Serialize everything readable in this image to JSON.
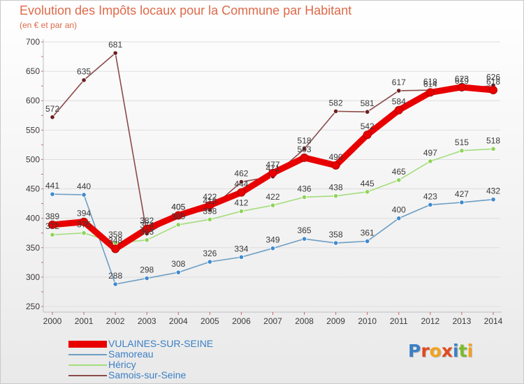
{
  "title": "Evolution des Impôts locaux pour la Commune par Habitant",
  "subtitle": "(en € et par an)",
  "logo": {
    "text": "Proxiti",
    "letters": [
      "P",
      "r",
      "o",
      "x",
      "i",
      "t",
      "i"
    ],
    "letter_colors": [
      "#3b7fc4",
      "#e2491f",
      "#f4a11d",
      "#e2491f",
      "#3b7fc4",
      "#7bbb2c",
      "#f4a11d"
    ]
  },
  "chart_data": {
    "type": "line",
    "title": "Evolution des Impôts locaux pour la Commune par Habitant",
    "subtitle": "(en € et par an)",
    "xlabel": "",
    "ylabel": "",
    "ylim": [
      250,
      700
    ],
    "yticks": [
      250,
      300,
      350,
      400,
      450,
      500,
      550,
      600,
      650,
      700
    ],
    "grid": true,
    "legend_position": "bottom-left",
    "categories": [
      "2000",
      "2001",
      "2002",
      "2003",
      "2004",
      "2005",
      "2006",
      "2007",
      "2008",
      "2009",
      "2010",
      "2011",
      "2012",
      "2013",
      "2014"
    ],
    "series": [
      {
        "name": "VULAINES-SUR-SEINE",
        "color": "#e80000",
        "marker_color": "#e80000",
        "values": [
          389,
          394,
          348,
          382,
          405,
          422,
          444,
          477,
          503,
          490,
          542,
          584,
          614,
          623,
          618
        ],
        "labels": [
          "389",
          "394",
          "348",
          "382",
          "405",
          "422",
          "444",
          "477",
          "503",
          "490",
          "542",
          "584",
          "614",
          "623",
          "618"
        ]
      },
      {
        "name": "Samoreau",
        "color": "#6d9ec3",
        "marker_color": "#3f8ad0",
        "values": [
          441,
          440,
          288,
          298,
          308,
          326,
          334,
          349,
          365,
          358,
          361,
          400,
          423,
          427,
          432
        ],
        "labels": [
          "441",
          "440",
          "288",
          "298",
          "308",
          "326",
          "334",
          "349",
          "365",
          "358",
          "361",
          "400",
          "423",
          "427",
          "432"
        ]
      },
      {
        "name": "Héricy",
        "color": "#a4dd7c",
        "marker_color": "#8fd45a",
        "values": [
          372,
          375,
          358,
          363,
          389,
          398,
          412,
          422,
          436,
          438,
          445,
          465,
          497,
          515,
          518
        ],
        "labels": [
          "372",
          "375",
          "358",
          "363",
          "389",
          "398",
          "412",
          "422",
          "436",
          "438",
          "445",
          "465",
          "497",
          "515",
          "518"
        ]
      },
      {
        "name": "Samois-sur-Seine",
        "color": "#8a4a4a",
        "marker_color": "#6b1f1f",
        "values": [
          572,
          635,
          681,
          374,
          405,
          415,
          462,
          471,
          518,
          582,
          581,
          617,
          618,
          619,
          626
        ],
        "labels": [
          "572",
          "635",
          "681",
          "374",
          "405",
          "415",
          "462",
          "471",
          "518",
          "582",
          "581",
          "617",
          "618",
          "619",
          "626"
        ]
      }
    ]
  }
}
